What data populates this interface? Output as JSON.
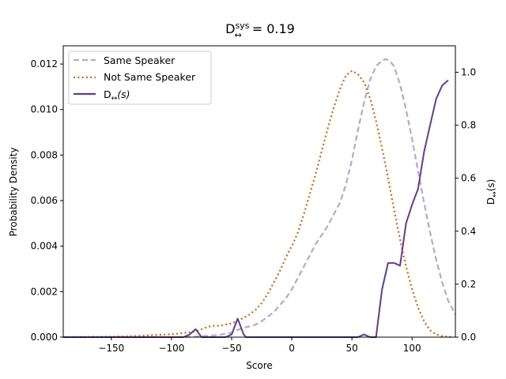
{
  "chart_data": {
    "type": "line",
    "title": "D↔sys = 0.19",
    "title_parts": {
      "base": "D",
      "sup": "sys",
      "sub": "↔",
      "rest": " = 0.19"
    },
    "xlabel": "Score",
    "ylabel": "Probability Density",
    "y2label": "D↔(s)",
    "xlim": [
      -190,
      136
    ],
    "ylim": [
      0,
      0.0128
    ],
    "y2lim": [
      0,
      1.1
    ],
    "xticks": [
      -150,
      -100,
      -50,
      0,
      50,
      100
    ],
    "xtick_labels": [
      "−150",
      "−100",
      "−50",
      "0",
      "50",
      "100"
    ],
    "yticks": [
      0,
      0.002,
      0.004,
      0.006,
      0.008,
      0.01,
      0.012
    ],
    "ytick_labels": [
      "0.000",
      "0.002",
      "0.004",
      "0.006",
      "0.008",
      "0.010",
      "0.012"
    ],
    "y2ticks": [
      0,
      0.2,
      0.4,
      0.6,
      0.8,
      1.0
    ],
    "y2tick_labels": [
      "0.0",
      "0.2",
      "0.4",
      "0.6",
      "0.8",
      "1.0"
    ],
    "grid": false,
    "legend_position": "top-left",
    "series": [
      {
        "name": "Same Speaker",
        "axis": "left",
        "color": "#b0aad4",
        "dash": "dashed",
        "x": [
          -190,
          -100,
          -80,
          -60,
          -50,
          -45,
          -40,
          -35,
          -30,
          -25,
          -20,
          -15,
          -10,
          -5,
          0,
          5,
          10,
          15,
          20,
          25,
          30,
          35,
          40,
          45,
          50,
          55,
          60,
          65,
          70,
          75,
          78,
          82,
          85,
          90,
          95,
          100,
          105,
          110,
          115,
          120,
          125,
          130,
          136
        ],
        "y": [
          0,
          0,
          2e-05,
          0.0001,
          0.0002,
          0.00032,
          0.00042,
          0.00047,
          0.00055,
          0.0007,
          0.0009,
          0.0011,
          0.0014,
          0.0017,
          0.0021,
          0.0026,
          0.0031,
          0.0036,
          0.0041,
          0.0045,
          0.0049,
          0.0054,
          0.0059,
          0.0067,
          0.0078,
          0.0091,
          0.0103,
          0.0113,
          0.0119,
          0.01215,
          0.01222,
          0.0121,
          0.0119,
          0.0111,
          0.01,
          0.0087,
          0.0073,
          0.0059,
          0.0046,
          0.0034,
          0.0024,
          0.0016,
          0.001
        ]
      },
      {
        "name": "Not Same Speaker",
        "axis": "left",
        "color": "#e66101",
        "dash": "dotted",
        "x": [
          -190,
          -150,
          -130,
          -110,
          -100,
          -90,
          -80,
          -75,
          -70,
          -65,
          -60,
          -55,
          -50,
          -45,
          -40,
          -35,
          -30,
          -25,
          -20,
          -15,
          -10,
          -5,
          0,
          5,
          10,
          15,
          20,
          25,
          30,
          35,
          40,
          45,
          50,
          55,
          60,
          65,
          70,
          75,
          80,
          85,
          90,
          95,
          100,
          105,
          110,
          115,
          120,
          125,
          130,
          134
        ],
        "y": [
          0,
          2e-05,
          5e-05,
          0.0001,
          0.00013,
          0.00018,
          0.00025,
          0.00035,
          0.00045,
          0.0005,
          0.0005,
          0.00055,
          0.0006,
          0.00072,
          0.00085,
          0.001,
          0.0012,
          0.0015,
          0.0019,
          0.0024,
          0.0029,
          0.0035,
          0.004,
          0.0046,
          0.0054,
          0.0063,
          0.0072,
          0.0082,
          0.0092,
          0.0101,
          0.0109,
          0.0115,
          0.0117,
          0.01155,
          0.0112,
          0.0105,
          0.0095,
          0.0083,
          0.007,
          0.0056,
          0.0043,
          0.0031,
          0.0021,
          0.0013,
          0.0007,
          0.0003,
          0.00012,
          4e-05,
          1e-05,
          0
        ]
      },
      {
        "name": "D↔(s)",
        "name_parts": {
          "base": "D",
          "sub": "↔",
          "rest": "(s)"
        },
        "axis": "right",
        "color": "#5e3c99",
        "dash": "solid",
        "x": [
          -190,
          -90,
          -85,
          -80,
          -75,
          -70,
          -55,
          -50,
          -45,
          -40,
          -38,
          -30,
          55,
          60,
          65,
          70,
          75,
          80,
          85,
          90,
          95,
          100,
          105,
          110,
          115,
          120,
          125,
          130
        ],
        "y": [
          0,
          0,
          0.01,
          0.03,
          0,
          0,
          0,
          0.01,
          0.07,
          0.01,
          0,
          0,
          0,
          0.01,
          0,
          0,
          0.18,
          0.28,
          0.28,
          0.27,
          0.43,
          0.5,
          0.56,
          0.7,
          0.8,
          0.9,
          0.95,
          0.97
        ]
      }
    ]
  }
}
